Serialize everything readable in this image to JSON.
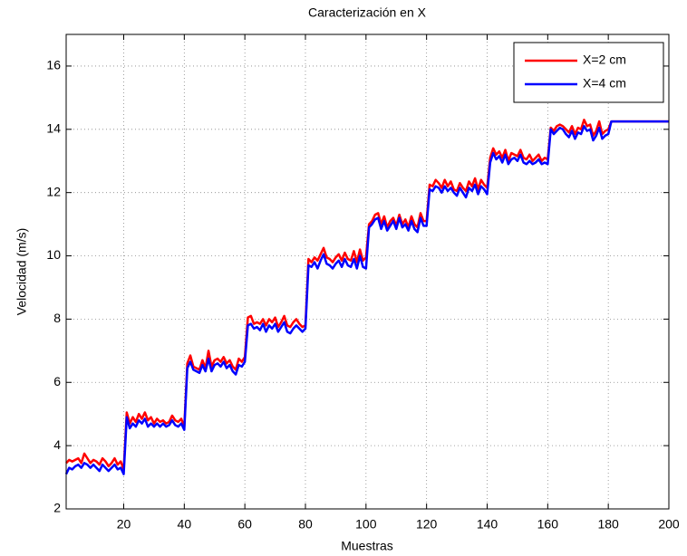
{
  "chart_data": {
    "type": "line",
    "title": "Caracterización en X",
    "xlabel": "Muestras",
    "ylabel": "Velocidad (m/s)",
    "x": [
      1,
      2,
      3,
      4,
      5,
      6,
      7,
      8,
      9,
      10,
      11,
      12,
      13,
      14,
      15,
      16,
      17,
      18,
      19,
      20,
      21,
      22,
      23,
      24,
      25,
      26,
      27,
      28,
      29,
      30,
      31,
      32,
      33,
      34,
      35,
      36,
      37,
      38,
      39,
      40,
      41,
      42,
      43,
      44,
      45,
      46,
      47,
      48,
      49,
      50,
      51,
      52,
      53,
      54,
      55,
      56,
      57,
      58,
      59,
      60,
      61,
      62,
      63,
      64,
      65,
      66,
      67,
      68,
      69,
      70,
      71,
      72,
      73,
      74,
      75,
      76,
      77,
      78,
      79,
      80,
      81,
      82,
      83,
      84,
      85,
      86,
      87,
      88,
      89,
      90,
      91,
      92,
      93,
      94,
      95,
      96,
      97,
      98,
      99,
      100,
      101,
      102,
      103,
      104,
      105,
      106,
      107,
      108,
      109,
      110,
      111,
      112,
      113,
      114,
      115,
      116,
      117,
      118,
      119,
      120,
      121,
      122,
      123,
      124,
      125,
      126,
      127,
      128,
      129,
      130,
      131,
      132,
      133,
      134,
      135,
      136,
      137,
      138,
      139,
      140,
      141,
      142,
      143,
      144,
      145,
      146,
      147,
      148,
      149,
      150,
      151,
      152,
      153,
      154,
      155,
      156,
      157,
      158,
      159,
      160,
      161,
      162,
      163,
      164,
      165,
      166,
      167,
      168,
      169,
      170,
      171,
      172,
      173,
      174,
      175,
      176,
      177,
      178,
      179,
      180,
      181,
      182,
      183,
      184,
      185,
      186,
      187,
      188,
      189,
      190,
      191,
      192,
      193,
      194,
      195,
      196,
      197,
      198,
      199,
      200
    ],
    "series": [
      {
        "name": "X=2 cm",
        "color": "#ff0000",
        "values": [
          3.45,
          3.55,
          3.5,
          3.55,
          3.6,
          3.45,
          3.75,
          3.6,
          3.45,
          3.55,
          3.5,
          3.4,
          3.6,
          3.5,
          3.35,
          3.45,
          3.6,
          3.4,
          3.5,
          3.25,
          5.05,
          4.7,
          4.9,
          4.75,
          5.0,
          4.85,
          5.05,
          4.8,
          4.9,
          4.7,
          4.85,
          4.75,
          4.8,
          4.7,
          4.75,
          4.95,
          4.8,
          4.75,
          4.85,
          4.6,
          6.6,
          6.85,
          6.5,
          6.45,
          6.4,
          6.7,
          6.45,
          7.0,
          6.5,
          6.7,
          6.75,
          6.65,
          6.8,
          6.6,
          6.7,
          6.5,
          6.4,
          6.75,
          6.65,
          6.8,
          8.05,
          8.1,
          7.85,
          7.9,
          7.85,
          8.0,
          7.8,
          8.0,
          7.9,
          8.05,
          7.75,
          7.9,
          8.1,
          7.8,
          7.75,
          7.9,
          8.0,
          7.85,
          7.75,
          7.8,
          9.9,
          9.8,
          9.95,
          9.85,
          10.05,
          10.25,
          9.95,
          9.9,
          9.8,
          9.95,
          10.05,
          9.85,
          10.1,
          9.9,
          9.85,
          10.15,
          9.8,
          10.2,
          9.85,
          9.95,
          11.0,
          11.1,
          11.3,
          11.35,
          11.0,
          11.25,
          10.9,
          11.1,
          11.2,
          10.95,
          11.3,
          11.0,
          11.15,
          10.9,
          11.25,
          11.0,
          10.9,
          11.35,
          11.1,
          11.1,
          12.25,
          12.2,
          12.4,
          12.3,
          12.15,
          12.4,
          12.2,
          12.35,
          12.1,
          12.05,
          12.3,
          12.15,
          12.05,
          12.35,
          12.2,
          12.45,
          12.1,
          12.4,
          12.25,
          12.15,
          13.1,
          13.4,
          13.2,
          13.3,
          13.1,
          13.35,
          13.0,
          13.25,
          13.2,
          13.15,
          13.35,
          13.1,
          13.05,
          13.2,
          13.0,
          13.1,
          13.2,
          13.0,
          13.1,
          13.05,
          14.05,
          13.95,
          14.1,
          14.15,
          14.1,
          14.0,
          13.9,
          14.1,
          13.85,
          14.05,
          14.0,
          14.3,
          14.1,
          14.15,
          13.8,
          13.95,
          14.25,
          13.85,
          13.95,
          14.0,
          14.25,
          14.25,
          14.25,
          14.25,
          14.25,
          14.25,
          14.25,
          14.25,
          14.25,
          14.25,
          14.25,
          14.25,
          14.25,
          14.25,
          14.25,
          14.25,
          14.25,
          14.25,
          14.25,
          14.25
        ]
      },
      {
        "name": "X=4 cm",
        "color": "#0000ff",
        "values": [
          3.1,
          3.3,
          3.25,
          3.35,
          3.4,
          3.3,
          3.45,
          3.4,
          3.3,
          3.4,
          3.3,
          3.2,
          3.4,
          3.3,
          3.2,
          3.3,
          3.4,
          3.25,
          3.3,
          3.1,
          4.9,
          4.55,
          4.7,
          4.6,
          4.8,
          4.7,
          4.85,
          4.6,
          4.7,
          4.6,
          4.7,
          4.6,
          4.7,
          4.6,
          4.65,
          4.8,
          4.65,
          4.6,
          4.7,
          4.5,
          6.45,
          6.65,
          6.4,
          6.35,
          6.3,
          6.55,
          6.35,
          6.75,
          6.35,
          6.55,
          6.6,
          6.5,
          6.65,
          6.45,
          6.55,
          6.35,
          6.25,
          6.55,
          6.5,
          6.65,
          7.8,
          7.85,
          7.7,
          7.75,
          7.65,
          7.85,
          7.6,
          7.8,
          7.7,
          7.85,
          7.6,
          7.75,
          7.9,
          7.6,
          7.55,
          7.7,
          7.8,
          7.7,
          7.6,
          7.7,
          9.7,
          9.65,
          9.8,
          9.6,
          9.85,
          10.05,
          9.75,
          9.7,
          9.6,
          9.75,
          9.85,
          9.65,
          9.9,
          9.7,
          9.65,
          9.9,
          9.6,
          10.0,
          9.65,
          9.6,
          10.9,
          11.0,
          11.15,
          11.2,
          10.85,
          11.1,
          10.8,
          10.95,
          11.1,
          10.85,
          11.2,
          10.9,
          11.0,
          10.8,
          11.1,
          10.85,
          10.75,
          11.2,
          10.95,
          10.95,
          12.1,
          12.05,
          12.2,
          12.15,
          12.0,
          12.2,
          12.05,
          12.15,
          12.0,
          11.9,
          12.15,
          12.0,
          11.85,
          12.15,
          12.05,
          12.25,
          11.95,
          12.2,
          12.1,
          11.95,
          12.95,
          13.25,
          13.05,
          13.15,
          12.95,
          13.2,
          12.9,
          13.05,
          13.1,
          13.0,
          13.2,
          12.95,
          12.9,
          13.0,
          12.9,
          12.95,
          13.05,
          12.9,
          12.95,
          12.9,
          14.0,
          13.85,
          13.95,
          14.05,
          14.0,
          13.85,
          13.75,
          13.95,
          13.7,
          13.9,
          13.85,
          14.1,
          13.95,
          14.0,
          13.65,
          13.8,
          14.05,
          13.7,
          13.8,
          13.85,
          14.25,
          14.25,
          14.25,
          14.25,
          14.25,
          14.25,
          14.25,
          14.25,
          14.25,
          14.25,
          14.25,
          14.25,
          14.25,
          14.25,
          14.25,
          14.25,
          14.25,
          14.25,
          14.25,
          14.25
        ]
      }
    ],
    "xlim": [
      1,
      200
    ],
    "xticks": [
      20,
      40,
      60,
      80,
      100,
      120,
      140,
      160,
      180,
      200
    ],
    "ylim": [
      2,
      17
    ],
    "yticks": [
      2,
      4,
      6,
      8,
      10,
      12,
      14,
      16
    ],
    "grid": true,
    "legend": "upper right"
  }
}
